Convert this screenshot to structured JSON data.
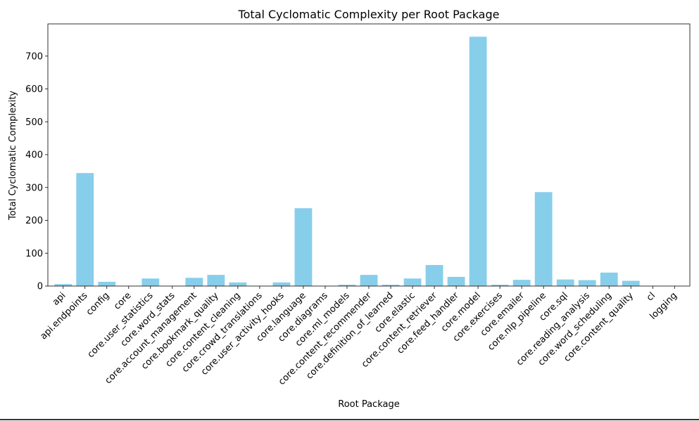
{
  "chart_data": {
    "type": "bar",
    "title": "Total Cyclomatic Complexity per Root Package",
    "xlabel": "Root Package",
    "ylabel": "Total Cyclomatic Complexity",
    "ylim": [
      0,
      798
    ],
    "yticks": [
      0,
      100,
      200,
      300,
      400,
      500,
      600,
      700
    ],
    "grid": false,
    "legend": "none",
    "bar_color": "#87ceeb",
    "categories": [
      "api",
      "api.endpoints",
      "config",
      "core",
      "core.user_statistics",
      "core.word_stats",
      "core.account_management",
      "core.bookmark_quality",
      "core.content_cleaning",
      "core.crowd_translations",
      "core.user_activity_hooks",
      "core.language",
      "core.diagrams",
      "core.ml_models",
      "core.content_recommender",
      "core.definition_of_learned",
      "core.elastic",
      "core.content_retriever",
      "core.feed_handler",
      "core.model",
      "core.exercises",
      "core.emailer",
      "core.nlp_pipeline",
      "core.sql",
      "core.reading_analysis",
      "core.word_scheduling",
      "core.content_quality",
      "cl",
      "logging"
    ],
    "values": [
      6,
      344,
      13,
      0,
      23,
      0,
      25,
      34,
      11,
      0,
      11,
      237,
      0,
      4,
      34,
      4,
      23,
      64,
      28,
      759,
      4,
      19,
      286,
      20,
      18,
      41,
      16,
      0,
      0
    ]
  }
}
